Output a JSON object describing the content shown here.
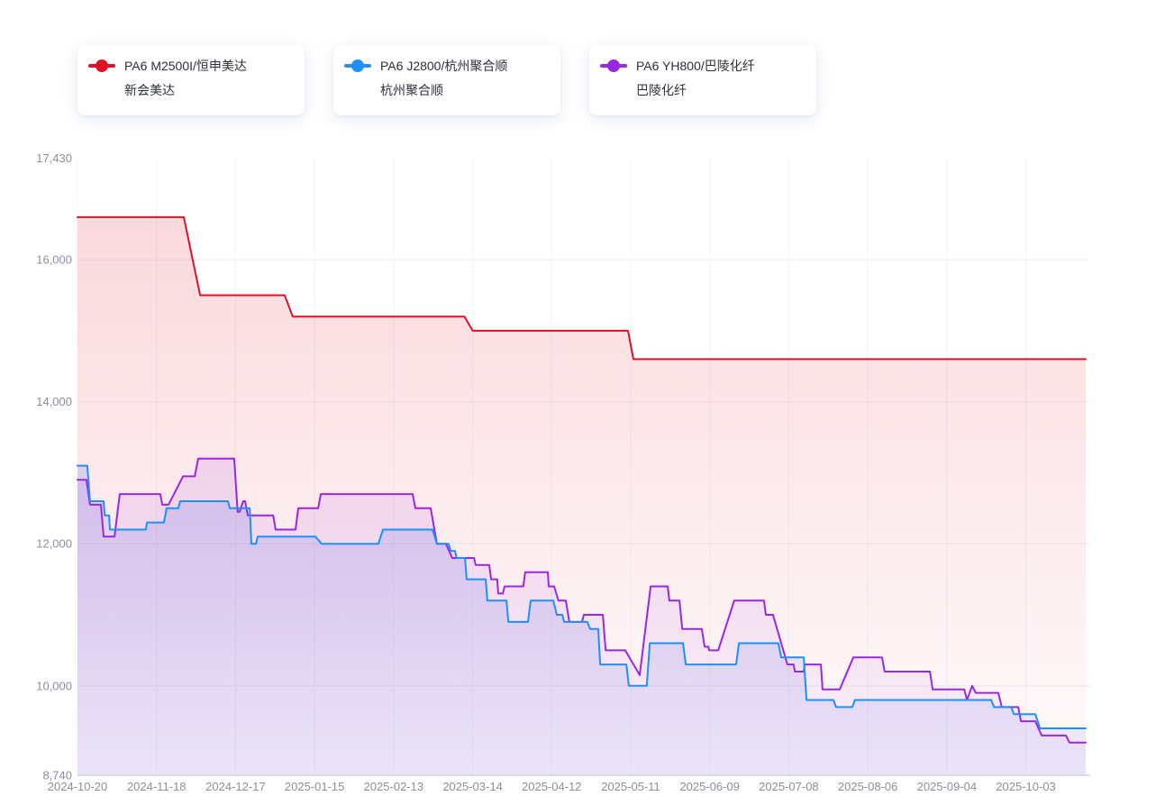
{
  "legend": {
    "items": [
      {
        "title": "PA6 M2500I/恒申美达",
        "subtitle": "新会美达",
        "color": "#e01126"
      },
      {
        "title": "PA6 J2800/杭州聚合顺",
        "subtitle": "杭州聚合顺",
        "color": "#1f8fff"
      },
      {
        "title": "PA6 YH800/巴陵化纤",
        "subtitle": "巴陵化纤",
        "color": "#9b27e3"
      }
    ]
  },
  "axes": {
    "y_tick_labels": [
      "17,430",
      "16,000",
      "14,000",
      "12,000",
      "10,000",
      "8,740"
    ],
    "x_tick_labels": [
      "2024-10-20",
      "2024-11-18",
      "2024-12-17",
      "2025-01-15",
      "2025-02-13",
      "2025-03-14",
      "2025-04-12",
      "2025-05-11",
      "2025-06-09",
      "2025-07-08",
      "2025-08-06",
      "2025-09-04",
      "2025-10-03"
    ]
  },
  "chart_data": {
    "type": "line",
    "title": "",
    "xlabel": "",
    "ylabel": "",
    "start_date": "2024-10-20",
    "x_range_days": [
      0,
      370
    ],
    "ylim": [
      8740,
      17430
    ],
    "x_tick_days": [
      0,
      29,
      58,
      87,
      116,
      145,
      174,
      203,
      232,
      261,
      290,
      319,
      348
    ],
    "x_tick_labels": [
      "2024-10-20",
      "2024-11-18",
      "2024-12-17",
      "2025-01-15",
      "2025-02-13",
      "2025-03-14",
      "2025-04-12",
      "2025-05-11",
      "2025-06-09",
      "2025-07-08",
      "2025-08-06",
      "2025-09-04",
      "2025-10-03"
    ],
    "y_ticks": [
      {
        "value": 17430,
        "label": "17,430"
      },
      {
        "value": 16000,
        "label": "16,000",
        "grid": true
      },
      {
        "value": 14000,
        "label": "14,000",
        "grid": true
      },
      {
        "value": 12000,
        "label": "12,000",
        "grid": true
      },
      {
        "value": 10000,
        "label": "10,000",
        "grid": true
      },
      {
        "value": 8740,
        "label": "8,740"
      }
    ],
    "grid": true,
    "legend_position": "top",
    "series": [
      {
        "name": "PA6 M2500I/恒申美达 新会美达",
        "color": "#e01126",
        "fill_from": "rgba(228,50,70,0.20)",
        "fill_to": "rgba(228,50,70,0.02)",
        "segments": [
          [
            0,
            39,
            16600
          ],
          [
            45,
            76,
            15500
          ],
          [
            79,
            142,
            15200
          ],
          [
            145,
            202,
            15000
          ],
          [
            204,
            370,
            14600
          ]
        ]
      },
      {
        "name": "PA6 YH800/巴陵化纤 巴陵化纤",
        "color": "#9b27e3",
        "fill_from": "rgba(160,70,230,0.22)",
        "fill_to": "rgba(160,70,230,0.05)",
        "segments": [
          [
            0,
            3.3,
            12900
          ],
          [
            4.6,
            8.6,
            12550
          ],
          [
            9.6,
            13.6,
            12100
          ],
          [
            15.5,
            30.4,
            12700
          ],
          [
            31.1,
            33.4,
            12550
          ],
          [
            38.7,
            43,
            12950
          ],
          [
            44.3,
            57.5,
            13200
          ],
          [
            58.8,
            59.5,
            12450
          ],
          [
            60.8,
            61.5,
            12600
          ],
          [
            62.5,
            71.8,
            12400
          ],
          [
            72.7,
            80,
            12200
          ],
          [
            81,
            88.3,
            12500
          ],
          [
            89.3,
            123,
            12700
          ],
          [
            124,
            129.6,
            12500
          ],
          [
            131.9,
            135.2,
            12000
          ],
          [
            137.5,
            145.5,
            11800
          ],
          [
            146.1,
            151.1,
            11700
          ],
          [
            151.8,
            154,
            11500
          ],
          [
            154.4,
            156.1,
            11300
          ],
          [
            156.7,
            163.6,
            11400
          ],
          [
            164.3,
            172.6,
            11600
          ],
          [
            172.9,
            174.9,
            11400
          ],
          [
            176.5,
            179.2,
            11200
          ],
          [
            180.5,
            185.1,
            10900
          ],
          [
            185.8,
            192.8,
            11000
          ],
          [
            193.8,
            201,
            10500
          ],
          [
            206.3,
            206.3,
            10150
          ],
          [
            210.3,
            216.6,
            11400
          ],
          [
            217.2,
            220.9,
            11200
          ],
          [
            221.9,
            229.1,
            10800
          ],
          [
            230.1,
            231.5,
            10550
          ],
          [
            231.8,
            235.1,
            10500
          ],
          [
            241,
            251.9,
            11200
          ],
          [
            252.6,
            255.2,
            11000
          ],
          [
            260.5,
            262.8,
            10300
          ],
          [
            263.2,
            266.5,
            10200
          ],
          [
            266.8,
            272.8,
            10300
          ],
          [
            273.4,
            279.7,
            9950
          ],
          [
            284.7,
            295.2,
            10400
          ],
          [
            296.2,
            312.8,
            10200
          ],
          [
            313.8,
            325.4,
            9950
          ],
          [
            326.4,
            326.4,
            9800
          ],
          [
            328.3,
            328.3,
            10000
          ],
          [
            329.6,
            337.9,
            9900
          ],
          [
            339.2,
            345.2,
            9700
          ],
          [
            346.2,
            351.5,
            9500
          ],
          [
            353.8,
            362.7,
            9300
          ],
          [
            364,
            370,
            9200
          ]
        ]
      },
      {
        "name": "PA6 J2800/杭州聚合顺 杭州聚合顺",
        "color": "#1f8fff",
        "fill_from": "rgba(70,95,235,0.30)",
        "fill_to": "rgba(110,110,235,0.10)",
        "segments": [
          [
            0,
            3.6,
            13100
          ],
          [
            4.6,
            9.6,
            12600
          ],
          [
            10,
            11.6,
            12400
          ],
          [
            11.9,
            25.1,
            12200
          ],
          [
            25.5,
            31.7,
            12300
          ],
          [
            32.7,
            37,
            12500
          ],
          [
            37.7,
            55.2,
            12600
          ],
          [
            55.9,
            63.2,
            12500
          ],
          [
            63.8,
            65.5,
            12000
          ],
          [
            66.1,
            87.3,
            12100
          ],
          [
            89.6,
            110.4,
            12000
          ],
          [
            112.1,
            130.3,
            12200
          ],
          [
            131.9,
            136.2,
            12000
          ],
          [
            136.9,
            138.5,
            11900
          ],
          [
            139.2,
            142.2,
            11800
          ],
          [
            142.8,
            149.8,
            11500
          ],
          [
            150.4,
            157.4,
            11200
          ],
          [
            158.1,
            165.3,
            10900
          ],
          [
            166.3,
            174.6,
            11200
          ],
          [
            175.9,
            177.9,
            11000
          ],
          [
            178.6,
            187.1,
            10900
          ],
          [
            188.1,
            191.1,
            10800
          ],
          [
            191.8,
            201.4,
            10300
          ],
          [
            202.3,
            208.9,
            10000
          ],
          [
            210,
            222.2,
            10600
          ],
          [
            223.2,
            241.7,
            10300
          ],
          [
            242.7,
            257.2,
            10600
          ],
          [
            258.2,
            266.5,
            10400
          ],
          [
            267.5,
            277.4,
            9800
          ],
          [
            278.4,
            284.3,
            9700
          ],
          [
            285.3,
            335.3,
            9800
          ],
          [
            336.3,
            342.6,
            9700
          ],
          [
            343.6,
            351.5,
            9600
          ],
          [
            353.2,
            370,
            9400
          ]
        ]
      }
    ]
  },
  "colors": {
    "grid_line": "#eceef3",
    "grid_line_vertical": "#f3f4f8",
    "axis_line": "#c9cdd4",
    "tick_text": "#8a8f99",
    "legend_text": "#2b303b",
    "background": "#ffffff"
  }
}
